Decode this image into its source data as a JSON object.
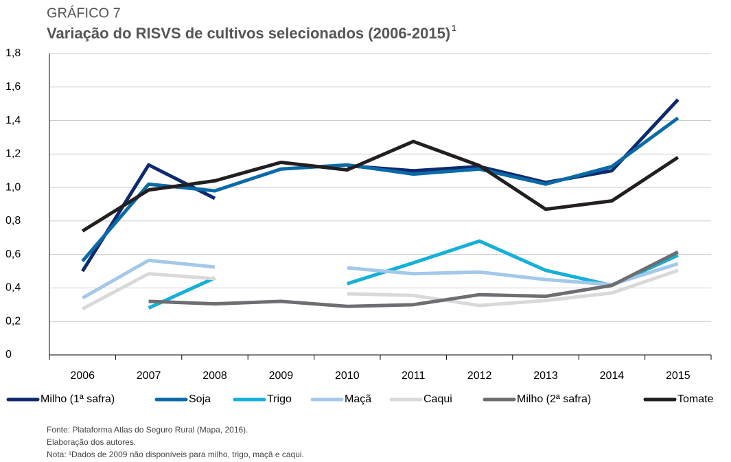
{
  "chart_data": {
    "type": "line",
    "kicker": "GRÁFICO 7",
    "title": "Variação do RISVS de cultivos selecionados (2006-2015)",
    "title_superscript": "1",
    "categories": [
      "2006",
      "2007",
      "2008",
      "2009",
      "2010",
      "2011",
      "2012",
      "2013",
      "2014",
      "2015"
    ],
    "series": [
      {
        "name": "Milho (1ª safra)",
        "color": "#0d2a6e",
        "values": [
          0.5,
          1.135,
          0.935,
          null,
          1.13,
          1.1,
          1.125,
          1.03,
          1.1,
          1.525
        ]
      },
      {
        "name": "Soja",
        "color": "#0a6aa8",
        "values": [
          0.56,
          1.02,
          0.98,
          1.11,
          1.135,
          1.08,
          1.11,
          1.02,
          1.125,
          1.415
        ]
      },
      {
        "name": "Trigo",
        "color": "#14b0d9",
        "values": [
          null,
          0.28,
          0.46,
          null,
          0.425,
          0.55,
          0.68,
          0.505,
          0.415,
          0.595
        ]
      },
      {
        "name": "Maçã",
        "color": "#a3c8ea",
        "values": [
          0.34,
          0.565,
          0.525,
          null,
          0.52,
          0.485,
          0.495,
          0.45,
          0.42,
          0.545
        ]
      },
      {
        "name": "Caqui",
        "color": "#d9d9d9",
        "values": [
          0.275,
          0.485,
          0.455,
          null,
          0.365,
          0.355,
          0.295,
          0.325,
          0.37,
          0.505
        ]
      },
      {
        "name": "Milho (2ª safra)",
        "color": "#6d6e71",
        "values": [
          null,
          0.32,
          0.305,
          0.32,
          0.29,
          0.3,
          0.36,
          0.35,
          0.415,
          0.615
        ]
      },
      {
        "name": "Tomate",
        "color": "#231f20",
        "values": [
          0.74,
          0.985,
          1.04,
          1.15,
          1.105,
          1.275,
          1.13,
          0.87,
          0.92,
          1.18
        ]
      }
    ],
    "ylim": [
      0,
      1.8
    ],
    "yticks": [
      0,
      {
        "value": 0.2,
        "label": "0,2"
      },
      {
        "value": 0.4,
        "label": "0,4"
      },
      {
        "value": 0.6,
        "label": "0,6"
      },
      {
        "value": 0.8,
        "label": "0,8"
      },
      {
        "value": 1.0,
        "label": "1,0"
      },
      {
        "value": 1.2,
        "label": "1,2"
      },
      {
        "value": 1.4,
        "label": "1,4"
      },
      {
        "value": 1.6,
        "label": "1,6"
      },
      {
        "value": 1.8,
        "label": "1,8"
      }
    ],
    "grid": true,
    "notes": [
      "Fonte: Plataforma Atlas do Seguro Rural (Mapa, 2016).",
      "Elaboração dos autores.",
      "Nota: ¹Dados de 2009 não disponíveis para milho, trigo, maçã e caqui."
    ]
  }
}
